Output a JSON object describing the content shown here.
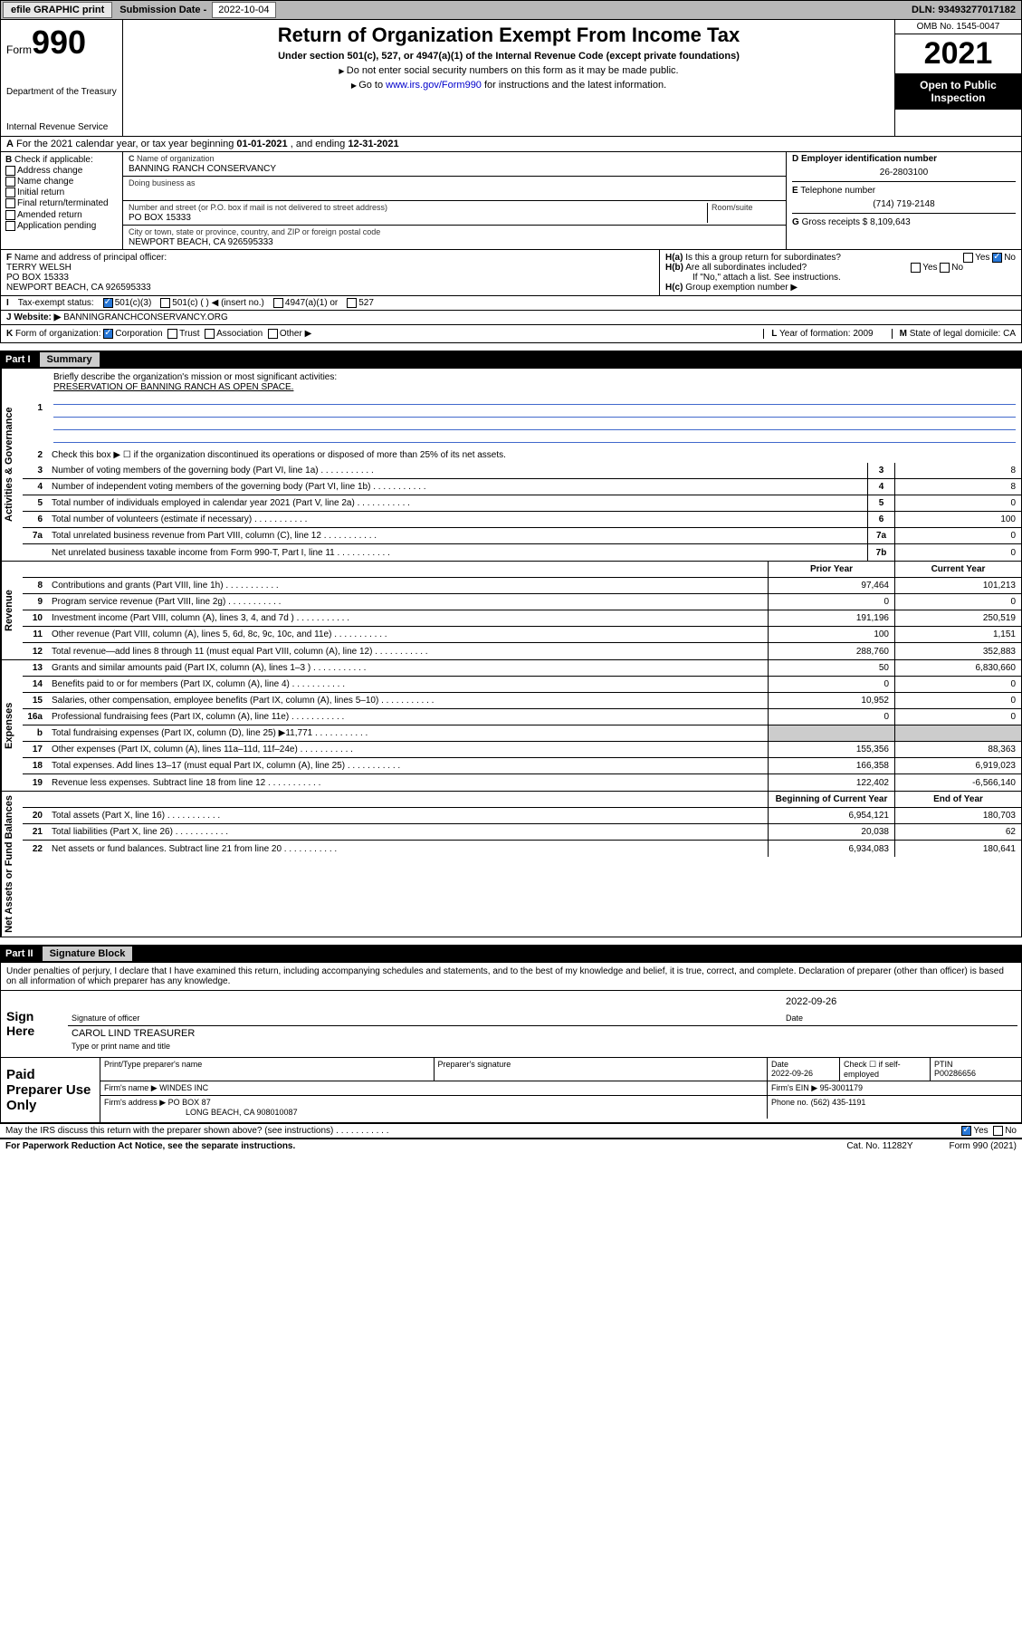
{
  "topbar": {
    "efile": "efile GRAPHIC print",
    "sub_lbl": "Submission Date - ",
    "sub_date": "2022-10-04",
    "dln_lbl": "DLN: ",
    "dln": "93493277017182"
  },
  "header": {
    "form_word": "Form",
    "form_num": "990",
    "dept": "Department of the Treasury",
    "irs": "Internal Revenue Service",
    "title": "Return of Organization Exempt From Income Tax",
    "sub": "Under section 501(c), 527, or 4947(a)(1) of the Internal Revenue Code (except private foundations)",
    "arrow1": "Do not enter social security numbers on this form as it may be made public.",
    "arrow2_pre": "Go to ",
    "arrow2_link": "www.irs.gov/Form990",
    "arrow2_post": " for instructions and the latest information.",
    "omb": "OMB No. 1545-0047",
    "year": "2021",
    "open": "Open to Public Inspection"
  },
  "lineA": {
    "pre": "For the 2021 calendar year, or tax year beginning ",
    "beg": "01-01-2021",
    "mid": " , and ending ",
    "end": "12-31-2021"
  },
  "B": {
    "hd": "Check if applicable:",
    "items": [
      "Address change",
      "Name change",
      "Initial return",
      "Final return/terminated",
      "Amended return",
      "Application pending"
    ]
  },
  "C": {
    "name_lbl": "Name of organization",
    "name": "BANNING RANCH CONSERVANCY",
    "dba_lbl": "Doing business as",
    "addr_lbl": "Number and street (or P.O. box if mail is not delivered to street address)",
    "room_lbl": "Room/suite",
    "addr": "PO BOX 15333",
    "city_lbl": "City or town, state or province, country, and ZIP or foreign postal code",
    "city": "NEWPORT BEACH, CA  926595333"
  },
  "D": {
    "ein_lbl": "Employer identification number",
    "ein": "26-2803100",
    "tel_lbl": "Telephone number",
    "tel": "(714) 719-2148",
    "gross_lbl": "Gross receipts $ ",
    "gross": "8,109,643"
  },
  "F": {
    "lbl": "Name and address of principal officer:",
    "name": "TERRY WELSH",
    "addr1": "PO BOX 15333",
    "addr2": "NEWPORT BEACH, CA  926595333"
  },
  "H": {
    "a": "Is this a group return for subordinates?",
    "b": "Are all subordinates included?",
    "bnote": "If \"No,\" attach a list. See instructions.",
    "c": "Group exemption number ▶",
    "yes": "Yes",
    "no": "No"
  },
  "I": {
    "lbl": "Tax-exempt status:",
    "opts": [
      "501(c)(3)",
      "501(c) (  ) ◀ (insert no.)",
      "4947(a)(1) or",
      "527"
    ]
  },
  "J": {
    "lbl": "Website: ▶",
    "val": "BANNINGRANCHCONSERVANCY.ORG"
  },
  "K": {
    "lbl": "Form of organization:",
    "opts": [
      "Corporation",
      "Trust",
      "Association",
      "Other ▶"
    ],
    "L": "Year of formation: 2009",
    "M": "State of legal domicile: CA"
  },
  "partI": {
    "label": "Part I",
    "title": "Summary"
  },
  "summary": {
    "q1": "Briefly describe the organization's mission or most significant activities:",
    "mission": "PRESERVATION OF BANNING RANCH AS OPEN SPACE.",
    "q2": "Check this box ▶ ☐  if the organization discontinued its operations or disposed of more than 25% of its net assets.",
    "rows_gov": [
      {
        "n": "3",
        "d": "Number of voting members of the governing body (Part VI, line 1a)",
        "box": "3",
        "v": "8"
      },
      {
        "n": "4",
        "d": "Number of independent voting members of the governing body (Part VI, line 1b)",
        "box": "4",
        "v": "8"
      },
      {
        "n": "5",
        "d": "Total number of individuals employed in calendar year 2021 (Part V, line 2a)",
        "box": "5",
        "v": "0"
      },
      {
        "n": "6",
        "d": "Total number of volunteers (estimate if necessary)",
        "box": "6",
        "v": "100"
      },
      {
        "n": "7a",
        "d": "Total unrelated business revenue from Part VIII, column (C), line 12",
        "box": "7a",
        "v": "0"
      },
      {
        "n": "",
        "d": "Net unrelated business taxable income from Form 990-T, Part I, line 11",
        "box": "7b",
        "v": "0"
      }
    ],
    "col_prior": "Prior Year",
    "col_curr": "Current Year",
    "rows_rev": [
      {
        "n": "8",
        "d": "Contributions and grants (Part VIII, line 1h)",
        "p": "97,464",
        "c": "101,213"
      },
      {
        "n": "9",
        "d": "Program service revenue (Part VIII, line 2g)",
        "p": "0",
        "c": "0"
      },
      {
        "n": "10",
        "d": "Investment income (Part VIII, column (A), lines 3, 4, and 7d )",
        "p": "191,196",
        "c": "250,519"
      },
      {
        "n": "11",
        "d": "Other revenue (Part VIII, column (A), lines 5, 6d, 8c, 9c, 10c, and 11e)",
        "p": "100",
        "c": "1,151"
      },
      {
        "n": "12",
        "d": "Total revenue—add lines 8 through 11 (must equal Part VIII, column (A), line 12)",
        "p": "288,760",
        "c": "352,883"
      }
    ],
    "rows_exp": [
      {
        "n": "13",
        "d": "Grants and similar amounts paid (Part IX, column (A), lines 1–3 )",
        "p": "50",
        "c": "6,830,660"
      },
      {
        "n": "14",
        "d": "Benefits paid to or for members (Part IX, column (A), line 4)",
        "p": "0",
        "c": "0"
      },
      {
        "n": "15",
        "d": "Salaries, other compensation, employee benefits (Part IX, column (A), lines 5–10)",
        "p": "10,952",
        "c": "0"
      },
      {
        "n": "16a",
        "d": "Professional fundraising fees (Part IX, column (A), line 11e)",
        "p": "0",
        "c": "0"
      },
      {
        "n": "b",
        "d": "Total fundraising expenses (Part IX, column (D), line 25) ▶11,771",
        "p": "",
        "c": "",
        "gray": true
      },
      {
        "n": "17",
        "d": "Other expenses (Part IX, column (A), lines 11a–11d, 11f–24e)",
        "p": "155,356",
        "c": "88,363"
      },
      {
        "n": "18",
        "d": "Total expenses. Add lines 13–17 (must equal Part IX, column (A), line 25)",
        "p": "166,358",
        "c": "6,919,023"
      },
      {
        "n": "19",
        "d": "Revenue less expenses. Subtract line 18 from line 12",
        "p": "122,402",
        "c": "-6,566,140"
      }
    ],
    "col_beg": "Beginning of Current Year",
    "col_end": "End of Year",
    "rows_net": [
      {
        "n": "20",
        "d": "Total assets (Part X, line 16)",
        "p": "6,954,121",
        "c": "180,703"
      },
      {
        "n": "21",
        "d": "Total liabilities (Part X, line 26)",
        "p": "20,038",
        "c": "62"
      },
      {
        "n": "22",
        "d": "Net assets or fund balances. Subtract line 21 from line 20",
        "p": "6,934,083",
        "c": "180,641"
      }
    ],
    "vlabels": {
      "gov": "Activities & Governance",
      "rev": "Revenue",
      "exp": "Expenses",
      "net": "Net Assets or Fund Balances"
    }
  },
  "partII": {
    "label": "Part II",
    "title": "Signature Block",
    "decl": "Under penalties of perjury, I declare that I have examined this return, including accompanying schedules and statements, and to the best of my knowledge and belief, it is true, correct, and complete. Declaration of preparer (other than officer) is based on all information of which preparer has any knowledge."
  },
  "sign": {
    "lbl": "Sign Here",
    "sig_officer": "Signature of officer",
    "date": "2022-09-26",
    "date_lbl": "Date",
    "name": "CAROL LIND TREASURER",
    "name_lbl": "Type or print name and title"
  },
  "paid": {
    "lbl": "Paid Preparer Use Only",
    "h_name": "Print/Type preparer's name",
    "h_sig": "Preparer's signature",
    "h_date": "Date",
    "date": "2022-09-26",
    "h_check": "Check ☐ if self-employed",
    "h_ptin": "PTIN",
    "ptin": "P00286656",
    "firm_lbl": "Firm's name    ▶",
    "firm": "WINDES INC",
    "ein_lbl": "Firm's EIN ▶",
    "ein": "95-3001179",
    "addr_lbl": "Firm's address ▶",
    "addr": "PO BOX 87",
    "addr2": "LONG BEACH, CA  908010087",
    "phone_lbl": "Phone no.",
    "phone": "(562) 435-1191"
  },
  "foot": {
    "q": "May the IRS discuss this return with the preparer shown above? (see instructions)",
    "yes": "Yes",
    "no": "No",
    "pra": "For Paperwork Reduction Act Notice, see the separate instructions.",
    "cat": "Cat. No. 11282Y",
    "form": "Form 990 (2021)"
  }
}
